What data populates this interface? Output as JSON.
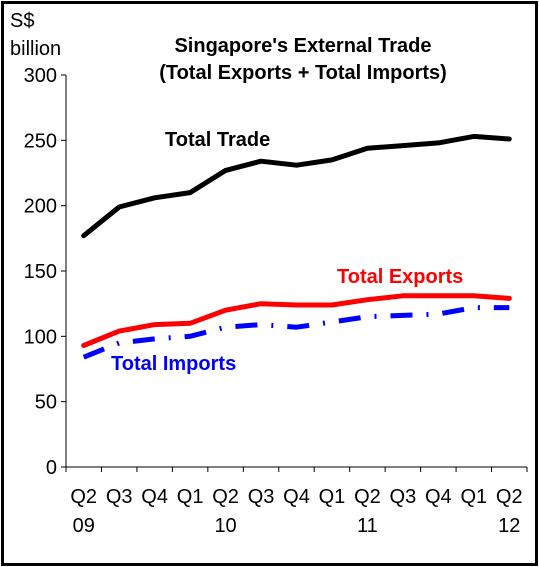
{
  "chart_data": {
    "type": "line",
    "title": "Singapore's External Trade",
    "subtitle": "(Total Exports + Total Imports)",
    "ylabel_line1": "S$",
    "ylabel_line2": "billion",
    "ylim": [
      0,
      300
    ],
    "yticks": [
      0,
      50,
      100,
      150,
      200,
      250,
      300
    ],
    "grid": false,
    "categories": [
      {
        "q": "Q2",
        "year": "09"
      },
      {
        "q": "Q3",
        "year": ""
      },
      {
        "q": "Q4",
        "year": ""
      },
      {
        "q": "Q1",
        "year": "10"
      },
      {
        "q": "Q2",
        "year": "10"
      },
      {
        "q": "Q3",
        "year": ""
      },
      {
        "q": "Q4",
        "year": ""
      },
      {
        "q": "Q1",
        "year": "11"
      },
      {
        "q": "Q2",
        "year": "11"
      },
      {
        "q": "Q3",
        "year": ""
      },
      {
        "q": "Q4",
        "year": ""
      },
      {
        "q": "Q1",
        "year": "12"
      },
      {
        "q": "Q2",
        "year": "12"
      }
    ],
    "year_labels": [
      {
        "text": "09",
        "at": 0
      },
      {
        "text": "10",
        "at": 4
      },
      {
        "text": "11",
        "at": 8
      },
      {
        "text": "12",
        "at": 12
      }
    ],
    "series": [
      {
        "name": "Total Trade",
        "color": "#000000",
        "style": "solid",
        "values": [
          177,
          199,
          206,
          210,
          227,
          234,
          231,
          235,
          244,
          246,
          248,
          253,
          251
        ]
      },
      {
        "name": "Total Exports",
        "color": "#ff0000",
        "style": "solid",
        "values": [
          93,
          104,
          109,
          110,
          120,
          125,
          124,
          124,
          128,
          131,
          131,
          131,
          129
        ]
      },
      {
        "name": "Total Imports",
        "color": "#0000ff",
        "style": "dash-dot",
        "values": [
          84,
          95,
          98,
          100,
          107,
          109,
          107,
          111,
          115,
          116,
          117,
          122,
          122
        ]
      }
    ],
    "annotations": [
      {
        "text": "Total Trade",
        "color": "#000000",
        "series": 0
      },
      {
        "text": "Total Exports",
        "color": "#ff0000",
        "series": 1
      },
      {
        "text": "Total Imports",
        "color": "#0000ff",
        "series": 2
      }
    ]
  }
}
